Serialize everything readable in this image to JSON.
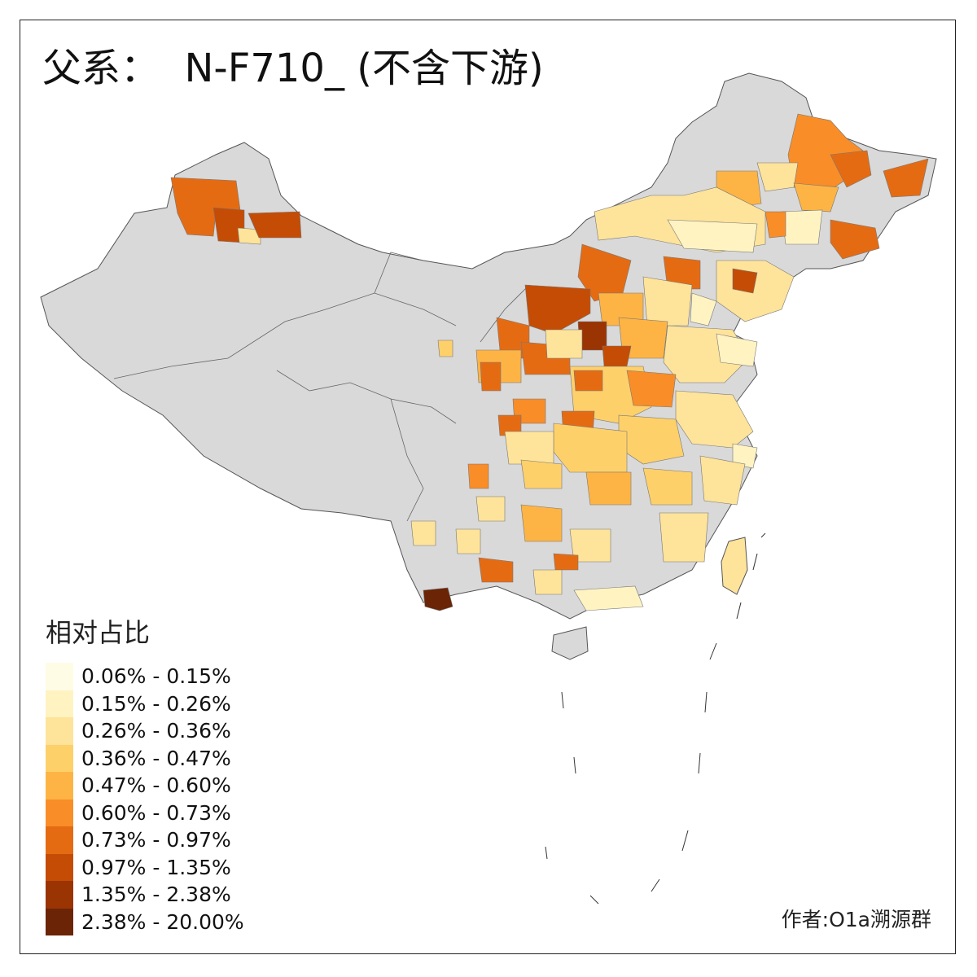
{
  "title": "父系：  N-F710_ (不含下游)",
  "legend": {
    "title": "相对占比",
    "items": [
      {
        "label": "0.06% - 0.15%",
        "color": "#fffce6"
      },
      {
        "label": "0.15% - 0.26%",
        "color": "#fff3c2"
      },
      {
        "label": "0.26% - 0.36%",
        "color": "#fee39a"
      },
      {
        "label": "0.36% - 0.47%",
        "color": "#fed06a"
      },
      {
        "label": "0.47% - 0.60%",
        "color": "#feb444"
      },
      {
        "label": "0.60% - 0.73%",
        "color": "#f98d28"
      },
      {
        "label": "0.73% - 0.97%",
        "color": "#e56b13"
      },
      {
        "label": "0.97% - 1.35%",
        "color": "#c54c05"
      },
      {
        "label": "1.35% - 2.38%",
        "color": "#9a3403"
      },
      {
        "label": "2.38% - 20.00%",
        "color": "#6b2406"
      }
    ]
  },
  "no_data_color": "#d9d9d9",
  "border_color": "#555555",
  "credit": "作者:O1a溯源群"
}
